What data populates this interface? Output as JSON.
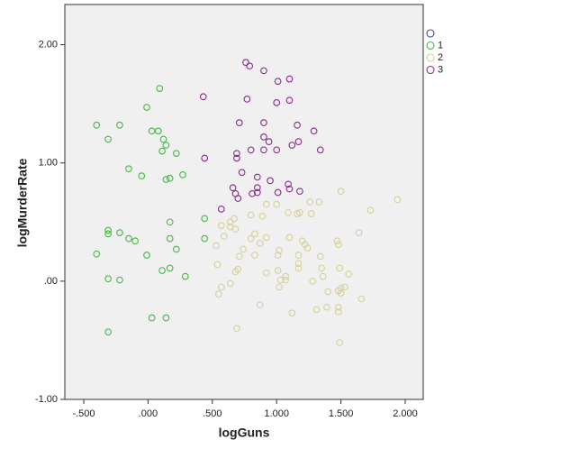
{
  "chart_data": {
    "type": "scatter",
    "x_label": "logGuns",
    "y_label": "logMurderRate",
    "xlim": [
      -0.647,
      2.14
    ],
    "ylim": [
      -1.0,
      2.34
    ],
    "xticks": [
      {
        "value": -0.5,
        "label": "-.500"
      },
      {
        "value": 0,
        "label": ".000"
      },
      {
        "value": 0.5,
        "label": ".500"
      },
      {
        "value": 1,
        "label": "1.000"
      },
      {
        "value": 1.5,
        "label": "1.500"
      },
      {
        "value": 2,
        "label": "2.000"
      }
    ],
    "yticks": [
      {
        "value": -1,
        "label": "-1.00"
      },
      {
        "value": 0,
        "label": ".00"
      },
      {
        "value": 1,
        "label": "1.00"
      },
      {
        "value": 2,
        "label": "2.00"
      }
    ],
    "legend_position": "right",
    "series": [
      {
        "name": null,
        "color": "#3a4ea3",
        "x": [],
        "values": []
      },
      {
        "name": "1",
        "color": "#44b944",
        "x": [
          -0.4,
          -0.22,
          -0.31,
          0.09,
          -0.01,
          0.08,
          -0.15,
          -0.05,
          0.03,
          0.12,
          0.14,
          0.11,
          0.14,
          0.27,
          0.22,
          0.17,
          0.44,
          0.17,
          -0.31,
          -0.31,
          -0.22,
          -0.15,
          -0.1,
          -0.01,
          0.17,
          0.22,
          -0.4,
          -0.31,
          -0.22,
          0.11,
          0.17,
          0.29,
          0.44,
          -0.31,
          0.03,
          0.14
        ],
        "values": [
          1.32,
          1.32,
          1.2,
          1.63,
          1.47,
          1.27,
          0.95,
          0.89,
          1.27,
          1.2,
          1.15,
          1.1,
          0.86,
          0.9,
          1.08,
          0.87,
          0.53,
          0.5,
          0.43,
          0.4,
          0.41,
          0.36,
          0.34,
          0.22,
          0.36,
          0.27,
          0.23,
          0.02,
          0.01,
          0.09,
          0.11,
          0.04,
          0.36,
          -0.43,
          -0.31,
          -0.31
        ]
      },
      {
        "name": "2",
        "color": "#d6d09a",
        "x": [
          1.94,
          1.73,
          1.5,
          1.33,
          1.26,
          1.27,
          1.09,
          1.16,
          1.18,
          1.0,
          0.89,
          0.92,
          0.8,
          0.67,
          0.64,
          0.57,
          0.64,
          0.68,
          0.59,
          0.83,
          0.8,
          0.92,
          0.87,
          1.1,
          1.2,
          1.22,
          1.24,
          1.47,
          1.64,
          1.17,
          1.02,
          0.83,
          1.01,
          0.74,
          0.71,
          0.7,
          0.53,
          0.54,
          0.57,
          0.55,
          0.64,
          0.68,
          0.92,
          1.01,
          1.07,
          1.07,
          1.03,
          1.02,
          1.17,
          1.17,
          1.34,
          1.35,
          1.36,
          1.48,
          1.49,
          1.56,
          1.28,
          1.5,
          1.48,
          1.5,
          1.53,
          1.4,
          1.39,
          1.31,
          1.48,
          1.48,
          1.12,
          0.87,
          0.69,
          1.66,
          1.49
        ],
        "values": [
          0.69,
          0.6,
          0.76,
          0.67,
          0.67,
          0.57,
          0.58,
          0.57,
          0.58,
          0.65,
          0.55,
          0.65,
          0.56,
          0.53,
          0.5,
          0.47,
          0.46,
          0.44,
          0.38,
          0.4,
          0.36,
          0.37,
          0.32,
          0.37,
          0.34,
          0.31,
          0.28,
          0.34,
          0.41,
          0.22,
          0.26,
          0.22,
          0.22,
          0.27,
          0.21,
          0.1,
          0.3,
          0.14,
          -0.05,
          -0.11,
          -0.02,
          0.08,
          0.07,
          0.09,
          0.04,
          0.01,
          0.01,
          -0.05,
          0.15,
          0.11,
          0.21,
          0.11,
          0.04,
          0.31,
          0.11,
          0.06,
          0.0,
          -0.06,
          -0.08,
          -0.1,
          -0.05,
          -0.09,
          -0.22,
          -0.24,
          -0.22,
          -0.26,
          -0.27,
          -0.2,
          -0.4,
          -0.15,
          -0.52
        ]
      },
      {
        "name": "3",
        "color": "#8b2a8b",
        "x": [
          0.76,
          0.79,
          0.9,
          1.01,
          1.1,
          0.77,
          1.1,
          0.43,
          1.0,
          1.16,
          0.71,
          0.9,
          1.29,
          0.9,
          0.94,
          1.12,
          1.17,
          1.34,
          1.0,
          0.69,
          0.8,
          0.9,
          0.44,
          0.69,
          0.73,
          0.85,
          0.95,
          0.66,
          0.85,
          1.09,
          1.18,
          1.01,
          0.81,
          0.68,
          0.85,
          0.7,
          0.57,
          1.1
        ],
        "values": [
          1.85,
          1.82,
          1.78,
          1.69,
          1.71,
          1.54,
          1.53,
          1.56,
          1.51,
          1.32,
          1.34,
          1.34,
          1.27,
          1.22,
          1.18,
          1.15,
          1.18,
          1.11,
          1.11,
          1.08,
          1.11,
          1.11,
          1.04,
          1.04,
          0.92,
          0.88,
          0.85,
          0.79,
          0.79,
          0.82,
          0.76,
          0.75,
          0.74,
          0.74,
          0.75,
          0.7,
          0.61,
          0.78
        ]
      }
    ]
  }
}
